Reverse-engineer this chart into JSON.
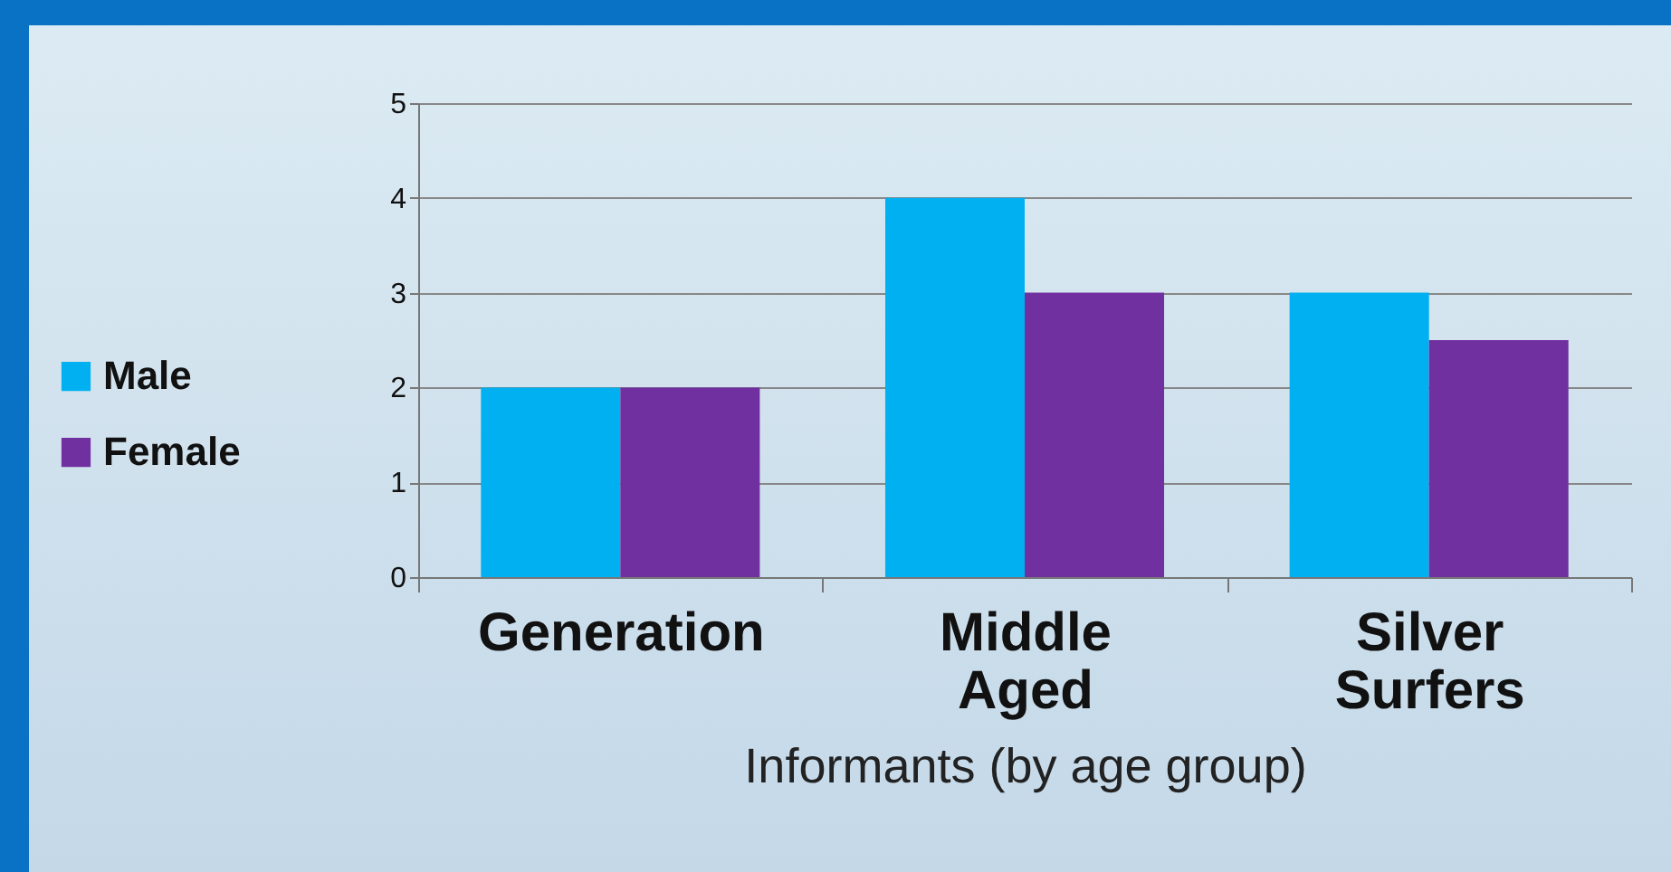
{
  "chart_data": {
    "type": "bar",
    "xlabel": "Informants (by age group)",
    "categories": [
      "Generation",
      "Middle Aged",
      "Silver Surfers"
    ],
    "series": [
      {
        "name": "Male",
        "color": "#00b0f0",
        "values": [
          2,
          4,
          3
        ]
      },
      {
        "name": "Female",
        "color": "#7030a0",
        "values": [
          2,
          3,
          2.5
        ]
      }
    ],
    "ylim": [
      0,
      5
    ],
    "yticks": [
      0,
      1,
      2,
      3,
      4,
      5
    ],
    "grid": "y",
    "legend": "left"
  }
}
